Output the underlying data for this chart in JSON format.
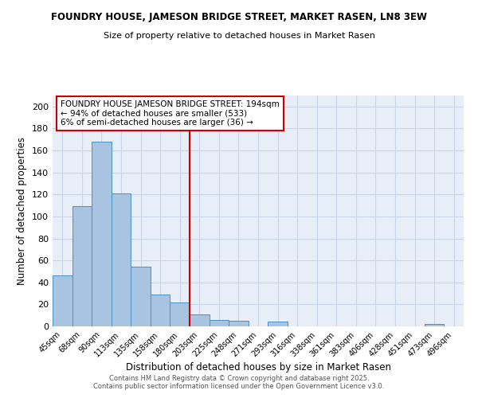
{
  "title": "FOUNDRY HOUSE, JAMESON BRIDGE STREET, MARKET RASEN, LN8 3EW",
  "subtitle": "Size of property relative to detached houses in Market Rasen",
  "xlabel": "Distribution of detached houses by size in Market Rasen",
  "ylabel": "Number of detached properties",
  "bar_labels": [
    "45sqm",
    "68sqm",
    "90sqm",
    "113sqm",
    "135sqm",
    "158sqm",
    "180sqm",
    "203sqm",
    "225sqm",
    "248sqm",
    "271sqm",
    "293sqm",
    "316sqm",
    "338sqm",
    "361sqm",
    "383sqm",
    "406sqm",
    "428sqm",
    "451sqm",
    "473sqm",
    "496sqm"
  ],
  "bar_values": [
    46,
    109,
    168,
    121,
    54,
    29,
    22,
    11,
    6,
    5,
    0,
    4,
    0,
    0,
    0,
    0,
    0,
    0,
    0,
    2,
    0
  ],
  "bar_color": "#a8c4e0",
  "bar_edgecolor": "#4a90c4",
  "vline_x_idx": 7,
  "vline_color": "#cc0000",
  "annotation_text": "FOUNDRY HOUSE JAMESON BRIDGE STREET: 194sqm\n← 94% of detached houses are smaller (533)\n6% of semi-detached houses are larger (36) →",
  "annotation_box_edgecolor": "#cc0000",
  "ylim": [
    0,
    210
  ],
  "yticks": [
    0,
    20,
    40,
    60,
    80,
    100,
    120,
    140,
    160,
    180,
    200
  ],
  "grid_color": "#c8d4e8",
  "background_color": "#e8eef8",
  "footer_line1": "Contains HM Land Registry data © Crown copyright and database right 2025.",
  "footer_line2": "Contains public sector information licensed under the Open Government Licence v3.0."
}
